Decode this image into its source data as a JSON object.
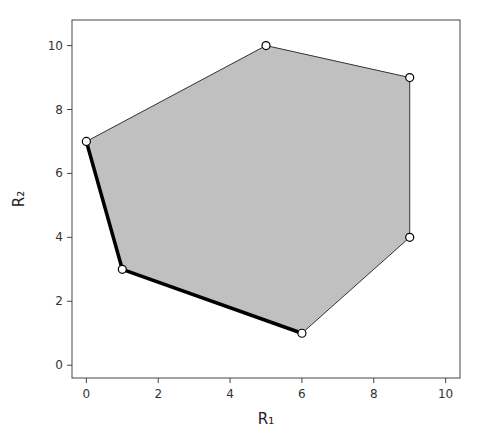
{
  "chart_data": {
    "type": "polygon",
    "series": [
      {
        "type": "area",
        "x": [
          0,
          1,
          6,
          9,
          9,
          5
        ],
        "values": [
          7,
          3,
          1,
          4,
          9,
          10
        ],
        "color": "#c0c0c0",
        "marker": "circle"
      },
      {
        "type": "line",
        "x": [
          0,
          1,
          6
        ],
        "values": [
          7,
          3,
          1
        ],
        "color": "#000000"
      }
    ],
    "xlim": [
      -0.4,
      10.4
    ],
    "ylim": [
      -0.4,
      10.8
    ],
    "xticks": [
      0,
      2,
      4,
      6,
      8,
      10
    ],
    "yticks": [
      0,
      2,
      4,
      6,
      8,
      10
    ],
    "xlabel": "R₁",
    "ylabel": "R₂",
    "grid": false
  }
}
